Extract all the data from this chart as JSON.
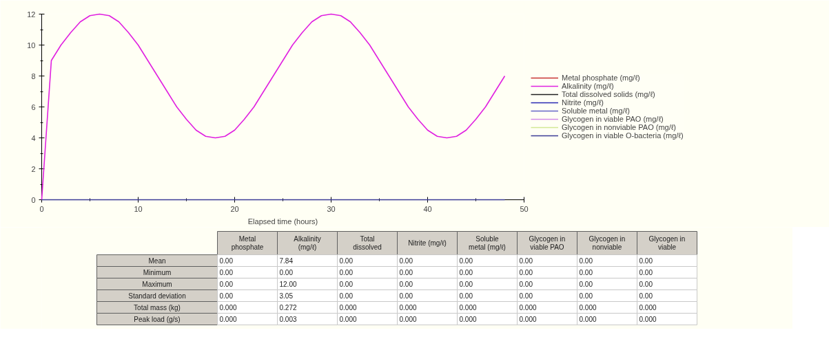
{
  "chart_data": {
    "type": "line",
    "xlabel": "Elapsed time (hours)",
    "xlim": [
      0,
      50
    ],
    "xticks": [
      0,
      10,
      20,
      30,
      40,
      50
    ],
    "ylim": [
      0,
      12
    ],
    "yticks": [
      0,
      2,
      4,
      6,
      8,
      10,
      12
    ],
    "grid": false,
    "legend": "right",
    "marker": "none",
    "line_style": "solid",
    "series": [
      {
        "name": "Metal phosphate (mg/ℓ)",
        "color": "#c83232"
      },
      {
        "name": "Alkalinity (mg/ℓ)",
        "color": "#e020e0",
        "x": [
          0,
          1,
          2,
          3,
          4,
          5,
          6,
          7,
          8,
          9,
          10,
          11,
          12,
          13,
          14,
          15,
          16,
          17,
          18,
          19,
          20,
          21,
          22,
          23,
          24,
          25,
          26,
          27,
          28,
          29,
          30,
          31,
          32,
          33,
          34,
          35,
          36,
          37,
          38,
          39,
          40,
          41,
          42,
          43,
          44,
          45,
          46,
          47,
          48
        ],
        "values": [
          0,
          9.0,
          10.0,
          10.8,
          11.5,
          11.9,
          12.0,
          11.9,
          11.5,
          10.8,
          10.0,
          9.0,
          8.0,
          7.0,
          6.0,
          5.2,
          4.5,
          4.1,
          4.0,
          4.1,
          4.5,
          5.2,
          6.0,
          7.0,
          8.0,
          9.0,
          10.0,
          10.8,
          11.5,
          11.9,
          12.0,
          11.9,
          11.5,
          10.8,
          10.0,
          9.0,
          8.0,
          7.0,
          6.0,
          5.2,
          4.5,
          4.1,
          4.0,
          4.1,
          4.5,
          5.2,
          6.0,
          7.0,
          8.0
        ]
      },
      {
        "name": "Total dissolved solids (mg/ℓ)",
        "color": "#202020"
      },
      {
        "name": "Nitrite (mg/ℓ)",
        "color": "#2828b4"
      },
      {
        "name": "Soluble metal (mg/ℓ)",
        "color": "#6464c8"
      },
      {
        "name": "Glycogen in viable PAO (mg/ℓ)",
        "color": "#d28ce6"
      },
      {
        "name": "Glycogen in nonviable PAO (mg/ℓ)",
        "color": "#d2e896"
      },
      {
        "name": "Glycogen in viable O-bacteria (mg/ℓ)",
        "color": "#3c3c96",
        "x": [
          0,
          48
        ],
        "values": [
          0,
          0
        ]
      }
    ],
    "annotations": [
      "Metal\nphosphate",
      "Alkalinity\n(mg/ℓ)",
      "Total\ndissolved",
      "Nitrite (mg/ℓ)",
      "Soluble\nmetal (mg/ℓ)",
      "Glycogen in\nviable PAO",
      "Glycogen in\nnonviable",
      "Glycogen in\nviable",
      "Mean",
      "0.00",
      "7.84",
      "0.00",
      "0.00",
      "0.00",
      "0.00",
      "0.00",
      "0.00",
      "Minimum",
      "0.00",
      "0.00",
      "0.00",
      "0.00",
      "0.00",
      "0.00",
      "0.00",
      "0.00",
      "Maximum",
      "0.00",
      "12.00",
      "0.00",
      "0.00",
      "0.00",
      "0.00",
      "0.00",
      "0.00",
      "Standard deviation",
      "0.00",
      "3.05",
      "0.00",
      "0.00",
      "0.00",
      "0.00",
      "0.00",
      "0.00",
      "Total mass (kg)",
      "0.000",
      "0.272",
      "0.000",
      "0.000",
      "0.000",
      "0.000",
      "0.000",
      "0.000",
      "Peak load (g/s)",
      "0.000",
      "0.003",
      "0.000",
      "0.000",
      "0.000",
      "0.000",
      "0.000",
      "0.000"
    ]
  }
}
